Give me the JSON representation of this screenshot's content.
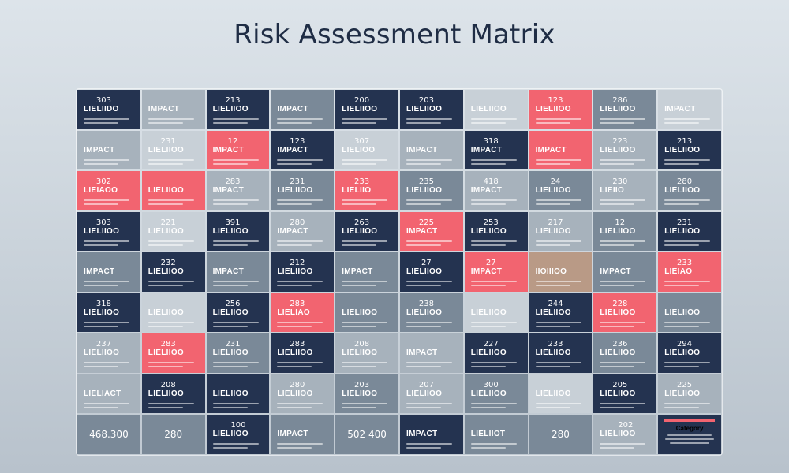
{
  "title": "Risk Assessment Matrix",
  "colors": {
    "navy": "#243350",
    "slate": "#7a8998",
    "mist": "#a7b2bc",
    "pale": "#c8d0d7",
    "red": "#f26470",
    "tan": "#b99a86"
  },
  "rows": [
    [
      {
        "style": "navy",
        "num": "303",
        "label": "LIELIIDO"
      },
      {
        "style": "mist",
        "num": "",
        "label": "IMPACT"
      },
      {
        "style": "navy",
        "num": "213",
        "label": "LIELIIOO"
      },
      {
        "style": "slate",
        "num": "",
        "label": "IMPACT"
      },
      {
        "style": "navy",
        "num": "200",
        "label": "LIELIIOO"
      },
      {
        "style": "navy",
        "num": "203",
        "label": "LIELIIOO"
      },
      {
        "style": "pale",
        "num": "",
        "label": "LIELIIOO"
      },
      {
        "style": "red",
        "num": "123",
        "label": "LIELIIOO"
      },
      {
        "style": "slate",
        "num": "286",
        "label": "LIELIIOO"
      },
      {
        "style": "pale",
        "num": "",
        "label": "IMPACT"
      }
    ],
    [
      {
        "style": "mist",
        "num": "",
        "label": "IMPACT"
      },
      {
        "style": "pale",
        "num": "231",
        "label": "LIELIIOO"
      },
      {
        "style": "red",
        "num": "12",
        "label": "IMPACT"
      },
      {
        "style": "navy",
        "num": "123",
        "label": "IMPACT"
      },
      {
        "style": "pale",
        "num": "307",
        "label": "LIELIOO"
      },
      {
        "style": "mist",
        "num": "",
        "label": "IMPACT"
      },
      {
        "style": "navy",
        "num": "318",
        "label": "IMPACT"
      },
      {
        "style": "red",
        "num": "",
        "label": "IMPACT"
      },
      {
        "style": "mist",
        "num": "223",
        "label": "LIELIIOO"
      },
      {
        "style": "navy",
        "num": "213",
        "label": "LIELIIOO"
      }
    ],
    [
      {
        "style": "red",
        "num": "302",
        "label": "LIEIAOO"
      },
      {
        "style": "red",
        "num": "",
        "label": "LIELIIOO"
      },
      {
        "style": "mist",
        "num": "283",
        "label": "IMPACT"
      },
      {
        "style": "slate",
        "num": "231",
        "label": "LIELIIOO"
      },
      {
        "style": "red",
        "num": "233",
        "label": "LIELIIO"
      },
      {
        "style": "slate",
        "num": "235",
        "label": "LIELIIOO"
      },
      {
        "style": "mist",
        "num": "418",
        "label": "IMPACT"
      },
      {
        "style": "slate",
        "num": "24",
        "label": "LIELIIOO"
      },
      {
        "style": "mist",
        "num": "230",
        "label": "LIEIIO"
      },
      {
        "style": "slate",
        "num": "280",
        "label": "LIELIIOO"
      }
    ],
    [
      {
        "style": "navy",
        "num": "303",
        "label": "LIELIIOO"
      },
      {
        "style": "pale",
        "num": "221",
        "label": "LIELIIOO"
      },
      {
        "style": "navy",
        "num": "391",
        "label": "LIELIIOO"
      },
      {
        "style": "mist",
        "num": "280",
        "label": "IMPACT"
      },
      {
        "style": "navy",
        "num": "263",
        "label": "LIELIIOO"
      },
      {
        "style": "red",
        "num": "225",
        "label": "IMPACT"
      },
      {
        "style": "navy",
        "num": "253",
        "label": "LIELIIOO"
      },
      {
        "style": "mist",
        "num": "217",
        "label": "LIELIIOO"
      },
      {
        "style": "slate",
        "num": "12",
        "label": "LIELIIOO"
      },
      {
        "style": "navy",
        "num": "231",
        "label": "LIELIIOO"
      }
    ],
    [
      {
        "style": "slate",
        "num": "",
        "label": "IMPACT"
      },
      {
        "style": "navy",
        "num": "232",
        "label": "LIELIIOO"
      },
      {
        "style": "slate",
        "num": "",
        "label": "IMPACT"
      },
      {
        "style": "navy",
        "num": "212",
        "label": "LIELIIOO"
      },
      {
        "style": "slate",
        "num": "",
        "label": "IMPACT"
      },
      {
        "style": "navy",
        "num": "27",
        "label": "LIELIIOO"
      },
      {
        "style": "red",
        "num": "27",
        "label": "IMPACT"
      },
      {
        "style": "tan",
        "num": "",
        "label": "IIOIIIOO"
      },
      {
        "style": "slate",
        "num": "",
        "label": "IMPACT"
      },
      {
        "style": "red",
        "num": "233",
        "label": "LIEIAO"
      }
    ],
    [
      {
        "style": "navy",
        "num": "318",
        "label": "LIELIIOO"
      },
      {
        "style": "pale",
        "num": "",
        "label": "LIELIIOO"
      },
      {
        "style": "navy",
        "num": "256",
        "label": "LIELIIOO"
      },
      {
        "style": "red",
        "num": "283",
        "label": "LIELIAO"
      },
      {
        "style": "slate",
        "num": "",
        "label": "LIELIIOO"
      },
      {
        "style": "slate",
        "num": "238",
        "label": "LIELIIOO"
      },
      {
        "style": "pale",
        "num": "",
        "label": "LIELIIOO"
      },
      {
        "style": "navy",
        "num": "244",
        "label": "LIELIIOO"
      },
      {
        "style": "red",
        "num": "228",
        "label": "LIELIIOO"
      },
      {
        "style": "slate",
        "num": "",
        "label": "LIELIIOO"
      }
    ],
    [
      {
        "style": "mist",
        "num": "237",
        "label": "LIELIIOO"
      },
      {
        "style": "red",
        "num": "283",
        "label": "LIELIIOO"
      },
      {
        "style": "slate",
        "num": "231",
        "label": "LIELIIOO"
      },
      {
        "style": "navy",
        "num": "283",
        "label": "LIELIIOO"
      },
      {
        "style": "mist",
        "num": "208",
        "label": "LIELIIOO"
      },
      {
        "style": "mist",
        "num": "",
        "label": "IMPACT"
      },
      {
        "style": "navy",
        "num": "227",
        "label": "LIELIIOO"
      },
      {
        "style": "navy",
        "num": "233",
        "label": "LIELIIOO"
      },
      {
        "style": "slate",
        "num": "236",
        "label": "LIELIIOO"
      },
      {
        "style": "navy",
        "num": "294",
        "label": "LIELIIOO"
      }
    ],
    [
      {
        "style": "mist",
        "num": "",
        "label": "LIELIACT"
      },
      {
        "style": "navy",
        "num": "208",
        "label": "LIELIIOO"
      },
      {
        "style": "navy",
        "num": "",
        "label": "LIELIIOO"
      },
      {
        "style": "mist",
        "num": "280",
        "label": "LIELIIOO"
      },
      {
        "style": "slate",
        "num": "203",
        "label": "LIELIIOO"
      },
      {
        "style": "mist",
        "num": "207",
        "label": "LIELIIOO"
      },
      {
        "style": "slate",
        "num": "300",
        "label": "LIELIIOO"
      },
      {
        "style": "pale",
        "num": "",
        "label": "LIELIIOO"
      },
      {
        "style": "navy",
        "num": "205",
        "label": "LIELIIOO"
      },
      {
        "style": "mist",
        "num": "225",
        "label": "LIELIIOO"
      }
    ]
  ],
  "bottom": [
    {
      "kind": "big",
      "style": "slate",
      "text": "468.300"
    },
    {
      "kind": "big",
      "style": "slate",
      "text": "280"
    },
    {
      "kind": "stack",
      "style": "navy",
      "num": "100",
      "label": "LIELIIOO"
    },
    {
      "kind": "stack",
      "style": "slate",
      "num": "",
      "label": "IMPACT"
    },
    {
      "kind": "big",
      "style": "slate",
      "text": "502 400"
    },
    {
      "kind": "stack",
      "style": "navy",
      "num": "",
      "label": "IMPACT"
    },
    {
      "kind": "stack",
      "style": "slate",
      "num": "",
      "label": "LIELIIOT"
    },
    {
      "kind": "big",
      "style": "slate",
      "text": "280"
    },
    {
      "kind": "stack",
      "style": "mist",
      "num": "202",
      "label": "LIELIIOO"
    },
    {
      "kind": "category",
      "style": "navy",
      "text": "Category"
    }
  ]
}
